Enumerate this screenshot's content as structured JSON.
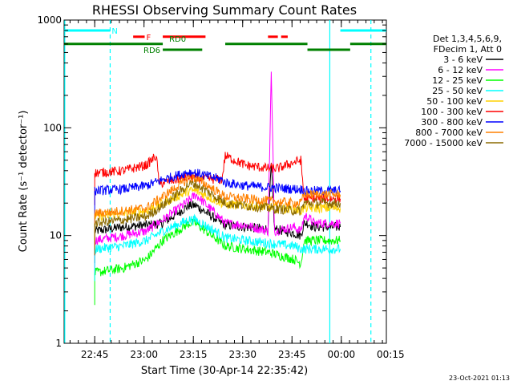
{
  "chart_data": {
    "type": "line",
    "title": "RHESSI Observing Summary Count Rates",
    "xlabel": "Start Time (30-Apr-14 22:35:42)",
    "ylabel": "Count Rate (s⁻¹ detector⁻¹)",
    "x_unit": "minutes after 22:35:42",
    "xlim": [
      0,
      98
    ],
    "ylim": [
      1,
      1000
    ],
    "y_scale": "log",
    "y_ticks": [
      {
        "value": 1,
        "label": "1"
      },
      {
        "value": 10,
        "label": "10"
      },
      {
        "value": 100,
        "label": "100"
      },
      {
        "value": 1000,
        "label": "1000"
      }
    ],
    "x_ticks": [
      {
        "value": 9.3,
        "label": "22:45"
      },
      {
        "value": 24.3,
        "label": "23:00"
      },
      {
        "value": 39.3,
        "label": "23:15"
      },
      {
        "value": 54.3,
        "label": "23:30"
      },
      {
        "value": 69.3,
        "label": "23:45"
      },
      {
        "value": 84.3,
        "label": "00:00"
      },
      {
        "value": 99.3,
        "label": "00:15"
      }
    ],
    "legend_header": [
      "Det 1,3,4,5,6,9,",
      "FDecim 1, Att 0"
    ],
    "legend_placement": "right",
    "series": [
      {
        "name": "3 - 6 keV",
        "color": "#000000",
        "x": [
          9.3,
          18,
          25,
          30,
          38,
          40,
          48,
          49,
          55,
          62,
          63,
          64,
          70,
          72,
          73,
          74,
          76,
          84
        ],
        "y": [
          11,
          12,
          12.5,
          13,
          19,
          19,
          13,
          12.5,
          12,
          11.5,
          45,
          11.5,
          10.5,
          10,
          13,
          13,
          12,
          12
        ]
      },
      {
        "name": "6 - 12 keV",
        "color": "#ff00ff",
        "x": [
          9.3,
          18,
          25,
          30,
          37,
          40,
          48,
          49,
          55,
          62,
          63,
          64,
          70,
          72,
          73,
          74,
          76,
          84
        ],
        "y": [
          9,
          10,
          11,
          14,
          20,
          24,
          14,
          13,
          12.5,
          11,
          320,
          11,
          12,
          11,
          15,
          15,
          13,
          13
        ]
      },
      {
        "name": "12 - 25 keV",
        "color": "#00ff00",
        "x": [
          9.3,
          18,
          25,
          30,
          38,
          40,
          48,
          49,
          55,
          62,
          70,
          72,
          73,
          84
        ],
        "y": [
          4.5,
          5,
          6,
          9,
          13,
          13,
          8.5,
          8,
          7.5,
          7,
          6,
          5.5,
          9,
          9
        ]
      },
      {
        "name": "25 - 50 keV",
        "color": "#00ffff",
        "x": [
          9.3,
          18,
          25,
          30,
          38,
          40,
          48,
          49,
          55,
          62,
          70,
          72,
          73,
          84
        ],
        "y": [
          7.5,
          8,
          9,
          11,
          14,
          14,
          10,
          9.5,
          9,
          8.5,
          8,
          7.5,
          7.5,
          7.5
        ]
      },
      {
        "name": "50 - 100 keV",
        "color": "#ffd000",
        "x": [
          9.3,
          18,
          25,
          30,
          38,
          40,
          48,
          49,
          55,
          62,
          70,
          72,
          73,
          84
        ],
        "y": [
          15,
          16,
          17,
          20,
          26,
          26,
          20,
          19.5,
          19,
          18.5,
          17.5,
          17,
          18,
          18
        ]
      },
      {
        "name": "100 - 300 keV",
        "color": "#ff0000",
        "x": [
          9.3,
          18,
          25,
          28,
          29,
          30,
          38,
          40,
          48,
          49,
          55,
          62,
          65,
          70,
          72,
          73,
          84
        ],
        "y": [
          38,
          40,
          45,
          55,
          29,
          31,
          35,
          34,
          33,
          55,
          45,
          42,
          42,
          48,
          50,
          22,
          22
        ]
      },
      {
        "name": "300 - 800 keV",
        "color": "#0000ff",
        "x": [
          9.3,
          18,
          25,
          30,
          38,
          40,
          48,
          49,
          55,
          62,
          70,
          72,
          73,
          84
        ],
        "y": [
          26,
          27,
          29,
          33,
          39,
          38,
          33,
          31,
          29,
          28,
          27,
          27,
          26,
          26
        ]
      },
      {
        "name": "800 - 7000 keV",
        "color": "#ff8000",
        "x": [
          9.3,
          18,
          25,
          30,
          38,
          40,
          48,
          49,
          55,
          62,
          70,
          72,
          73,
          84
        ],
        "y": [
          16,
          17,
          18,
          23,
          34,
          34,
          24,
          23,
          22,
          21,
          20,
          20,
          24,
          24
        ]
      },
      {
        "name": "7000 - 15000 keV",
        "color": "#8b6a00",
        "x": [
          9.3,
          18,
          25,
          30,
          38,
          40,
          48,
          49,
          55,
          62,
          70,
          72,
          73,
          84
        ],
        "y": [
          13,
          14,
          15,
          19,
          30,
          30,
          21,
          20,
          19,
          18,
          17,
          17,
          20,
          20
        ]
      }
    ],
    "flag_bars": [
      {
        "label": "N",
        "color": "#00ffff",
        "y": 800,
        "start": 0,
        "end": 14
      },
      {
        "label": "",
        "color": "#00ffff",
        "y": 800,
        "start": 84,
        "end": 98
      },
      {
        "label": "F",
        "color": "#ff0000",
        "y": 700,
        "start": 21,
        "end": 24.5
      },
      {
        "label": "",
        "color": "#ff0000",
        "y": 700,
        "start": 30,
        "end": 43
      },
      {
        "label": "",
        "color": "#ff0000",
        "y": 700,
        "start": 62,
        "end": 65
      },
      {
        "label": "",
        "color": "#ff0000",
        "y": 700,
        "start": 66,
        "end": 68
      },
      {
        "label": "RD0",
        "color": "#008000",
        "y": 600,
        "start": 0,
        "end": 30
      },
      {
        "label": "",
        "color": "#008000",
        "y": 600,
        "start": 49,
        "end": 74
      },
      {
        "label": "",
        "color": "#008000",
        "y": 600,
        "start": 87,
        "end": 98
      },
      {
        "label": "RD6",
        "color": "#008000",
        "y": 530,
        "start": 30,
        "end": 42
      },
      {
        "label": "",
        "color": "#008000",
        "y": 530,
        "start": 74,
        "end": 87
      }
    ],
    "vertical_lines": [
      {
        "x": 0.2,
        "style": "solid",
        "color": "#00ffff"
      },
      {
        "x": 14,
        "style": "dashed",
        "color": "#00ffff"
      },
      {
        "x": 80.8,
        "style": "solid",
        "color": "#00ffff"
      },
      {
        "x": 93.3,
        "style": "dashed",
        "color": "#00ffff"
      }
    ],
    "footer": "23-Oct-2021 01:13"
  }
}
